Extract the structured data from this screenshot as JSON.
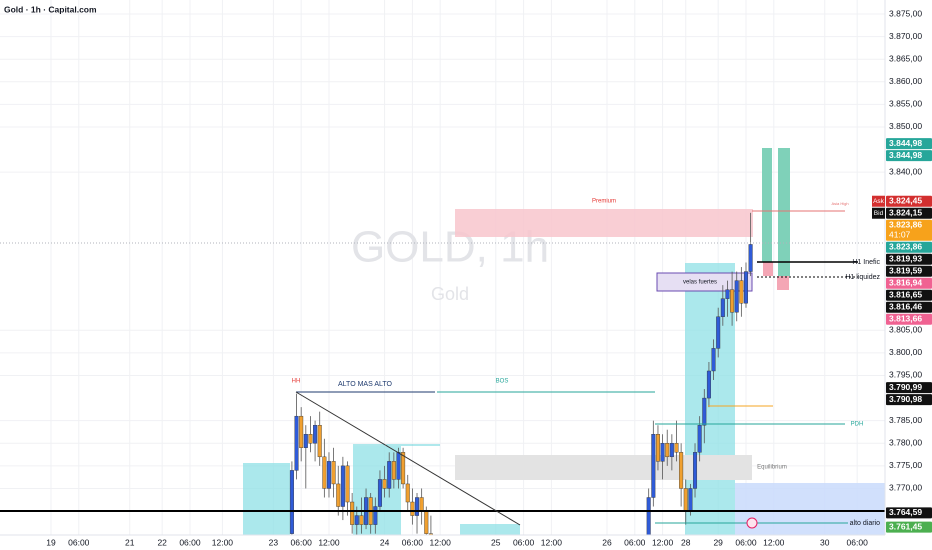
{
  "chart_data": {
    "type": "candlestick",
    "title": "Gold · 1h · Capital.com",
    "watermark": "GOLD, 1h",
    "watermark_sub": "Gold",
    "up_color": "#2f5bd8",
    "down_color": "#f0a030",
    "grid": true,
    "x": [
      63,
      64,
      65,
      66,
      67,
      68,
      69,
      70,
      71,
      72,
      73,
      74,
      75,
      76,
      77,
      78,
      79,
      80,
      81,
      82,
      83,
      84,
      85,
      86,
      87,
      88,
      89,
      90,
      91,
      92,
      93,
      140,
      141,
      142,
      143,
      144,
      145,
      146,
      147,
      148,
      149,
      150,
      151,
      152,
      153,
      154,
      155,
      156,
      157,
      158,
      159,
      160,
      161,
      162
    ],
    "open": [
      3760,
      3774,
      3786,
      3779,
      3782,
      3780,
      3784,
      3777,
      3770,
      3776,
      3771,
      3766,
      3775,
      3767,
      3762,
      3764,
      3762,
      3768,
      3762,
      3766,
      3772,
      3770,
      3776,
      3772,
      3778,
      3771,
      3767,
      3764,
      3768,
      3765,
      3760,
      3758,
      3768,
      3782,
      3776,
      3780,
      3777,
      3780,
      3778,
      3770,
      3765,
      3770,
      3778,
      3784,
      3790,
      3796,
      3801,
      3808,
      3812,
      3814,
      3809,
      3816,
      3811,
      3818
    ],
    "high": [
      3776,
      3791,
      3788,
      3784,
      3786,
      3785,
      3787,
      3781,
      3778,
      3779,
      3775,
      3777,
      3776,
      3769,
      3766,
      3768,
      3770,
      3769,
      3768,
      3774,
      3775,
      3778,
      3778,
      3779,
      3779,
      3773,
      3770,
      3769,
      3770,
      3766,
      3764,
      3770,
      3785,
      3784,
      3782,
      3783,
      3782,
      3785,
      3780,
      3772,
      3771,
      3780,
      3786,
      3792,
      3798,
      3803,
      3810,
      3815,
      3816,
      3818,
      3818,
      3819,
      3820,
      3831
    ],
    "low": [
      3758,
      3772,
      3776,
      3770,
      3778,
      3776,
      3775,
      3768,
      3768,
      3768,
      3764,
      3763,
      3764,
      3760,
      3759,
      3760,
      3761,
      3760,
      3760,
      3765,
      3768,
      3768,
      3770,
      3770,
      3770,
      3765,
      3762,
      3760,
      3762,
      3758,
      3757,
      3757,
      3766,
      3774,
      3772,
      3775,
      3774,
      3776,
      3766,
      3762,
      3764,
      3768,
      3776,
      3780,
      3788,
      3794,
      3799,
      3806,
      3808,
      3806,
      3807,
      3808,
      3810,
      3817
    ],
    "close": [
      3774,
      3786,
      3779,
      3782,
      3780,
      3784,
      3777,
      3770,
      3776,
      3771,
      3766,
      3775,
      3767,
      3762,
      3764,
      3762,
      3768,
      3762,
      3766,
      3772,
      3770,
      3776,
      3772,
      3778,
      3771,
      3767,
      3764,
      3768,
      3765,
      3760,
      3759,
      3768,
      3782,
      3776,
      3780,
      3777,
      3780,
      3778,
      3770,
      3765,
      3770,
      3778,
      3784,
      3790,
      3796,
      3801,
      3808,
      3812,
      3814,
      3809,
      3816,
      3811,
      3818,
      3824
    ],
    "ylim": [
      3759.7,
      3878.1
    ],
    "yticks": [
      {
        "value": 3770,
        "label": "3.770,00"
      },
      {
        "value": 3775,
        "label": "3.775,00"
      },
      {
        "value": 3780,
        "label": "3.780,00"
      },
      {
        "value": 3785,
        "label": "3.785,00"
      },
      {
        "value": 3795,
        "label": "3.795,00"
      },
      {
        "value": 3800,
        "label": "3.800,00"
      },
      {
        "value": 3805,
        "label": "3.805,00"
      },
      {
        "value": 3840,
        "label": "3.840,00"
      },
      {
        "value": 3850,
        "label": "3.850,00"
      },
      {
        "value": 3855,
        "label": "3.855,00"
      },
      {
        "value": 3860,
        "label": "3.860,00"
      },
      {
        "value": 3865,
        "label": "3.865,00"
      },
      {
        "value": 3870,
        "label": "3.870,00"
      },
      {
        "value": 3875,
        "label": "3.875,00"
      }
    ],
    "xlim": [
      0,
      191
    ],
    "xticks": [
      {
        "value": 11,
        "label": "19"
      },
      {
        "value": 17,
        "label": "06:00"
      },
      {
        "value": 28,
        "label": "21"
      },
      {
        "value": 35,
        "label": "22"
      },
      {
        "value": 41,
        "label": "06:00"
      },
      {
        "value": 48,
        "label": "12:00"
      },
      {
        "value": 59,
        "label": "23"
      },
      {
        "value": 65,
        "label": "06:00"
      },
      {
        "value": 71,
        "label": "12:00"
      },
      {
        "value": 83,
        "label": "24"
      },
      {
        "value": 89,
        "label": "06:00"
      },
      {
        "value": 95,
        "label": "12:00"
      },
      {
        "value": 107,
        "label": "25"
      },
      {
        "value": 113,
        "label": "06:00"
      },
      {
        "value": 119,
        "label": "12:00"
      },
      {
        "value": 131,
        "label": "26"
      },
      {
        "value": 137,
        "label": "06:00"
      },
      {
        "value": 143,
        "label": "12:00"
      },
      {
        "value": 148,
        "label": "28"
      },
      {
        "value": 155,
        "label": "29"
      },
      {
        "value": 161,
        "label": "06:00"
      },
      {
        "value": 167,
        "label": "12:00"
      },
      {
        "value": 178,
        "label": "30"
      },
      {
        "value": 185,
        "label": "06:00"
      }
    ],
    "price_labels": [
      {
        "value": 3844.98,
        "label": "3.844,98",
        "color": "#26a69a"
      },
      {
        "value": 3844.98,
        "label": "3.844,98",
        "color": "#26a69a"
      },
      {
        "tag": "Ask",
        "value": 3824.45,
        "label": "3.824,45",
        "color": "#d32f2f"
      },
      {
        "tag": "Bid",
        "value": 3824.15,
        "label": "3.824,15",
        "color": "#111111"
      },
      {
        "value": 3823.86,
        "label": "3.823,86",
        "countdown": "41:07",
        "color": "#f7a21b"
      },
      {
        "value": 3823.86,
        "label": "3.823,86",
        "color": "#26a69a"
      },
      {
        "value": 3819.93,
        "label": "3.819,93",
        "color": "#111111"
      },
      {
        "value": 3819.59,
        "label": "3.819,59",
        "color": "#111111"
      },
      {
        "value": 3816.94,
        "label": "3.816,94",
        "color": "#f06292"
      },
      {
        "value": 3816.65,
        "label": "3.816,65",
        "color": "#111111"
      },
      {
        "value": 3816.46,
        "label": "3.816,46",
        "color": "#111111"
      },
      {
        "value": 3813.66,
        "label": "3.813,66",
        "color": "#f06292"
      },
      {
        "value": 3790.99,
        "label": "3.790,99",
        "color": "#111111"
      },
      {
        "value": 3790.98,
        "label": "3.790,98",
        "color": "#111111"
      },
      {
        "value": 3764.59,
        "label": "3.764,59",
        "color": "#111111"
      },
      {
        "value": 3761.45,
        "label": "3.761,45",
        "color": "#4caf50"
      }
    ],
    "annotations": {
      "hh": "HH",
      "alto": "ALTO MAS ALTO",
      "bos": "BOS",
      "premium": "Premium",
      "asia_high": "Asia High",
      "equilibrium": "Equilibrium",
      "velas": "velas fuertes",
      "h1_inefic": "H1 Inefic",
      "h1_liquidez": "H1 liquidez",
      "pdh": "PDH",
      "alto_diario": "alto diario"
    }
  }
}
